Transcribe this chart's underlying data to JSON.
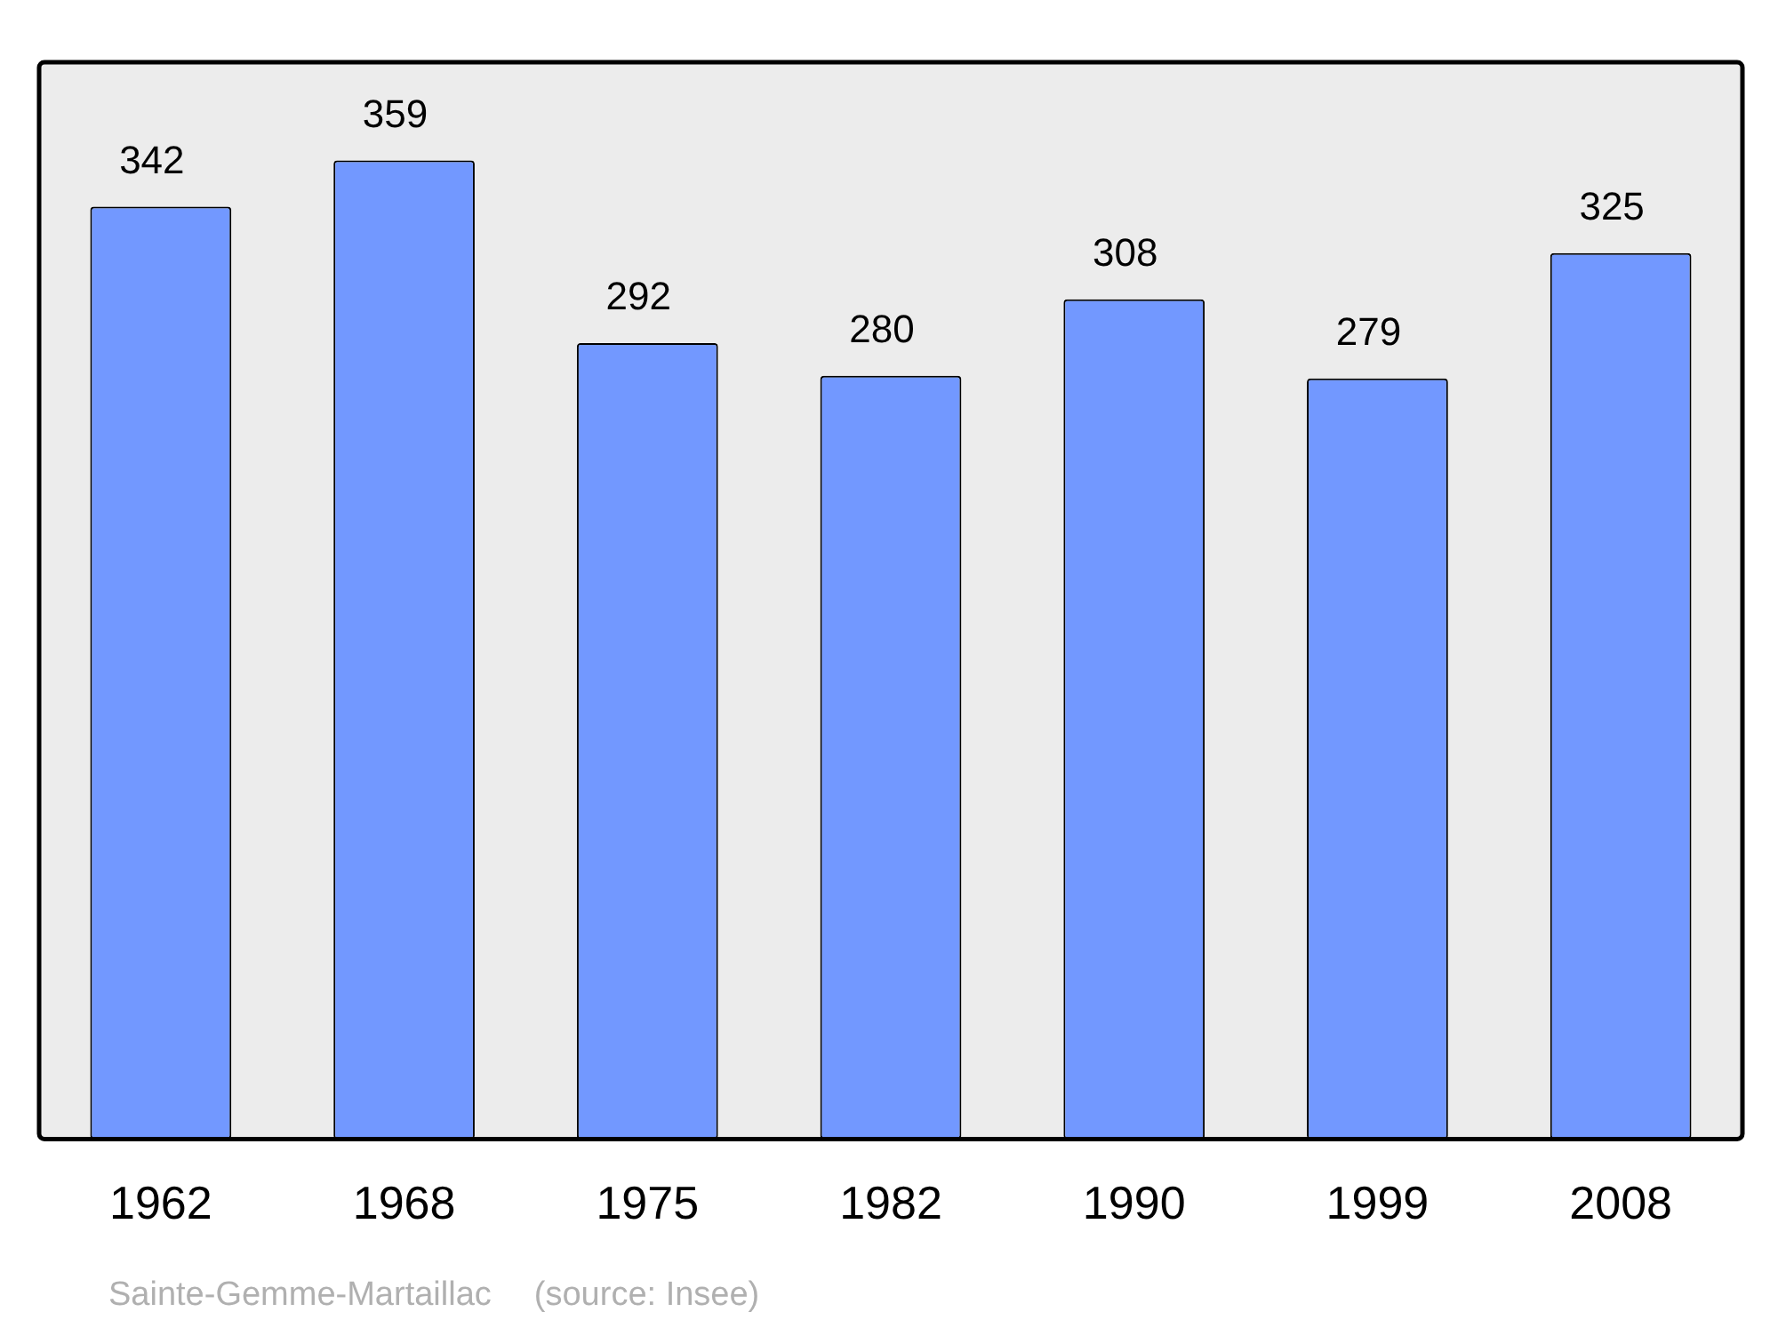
{
  "chart_data": {
    "type": "bar",
    "categories": [
      "1962",
      "1968",
      "1975",
      "1982",
      "1990",
      "1999",
      "2008"
    ],
    "values": [
      342,
      359,
      292,
      280,
      308,
      279,
      325
    ],
    "color": "#7298ff",
    "ylim": [
      0,
      395
    ],
    "data_labels": true,
    "grid": false,
    "legend": false,
    "tick_labels": "x",
    "annotations": [
      "Sainte-Gemme-Martaillac",
      "(source: Insee)"
    ]
  }
}
